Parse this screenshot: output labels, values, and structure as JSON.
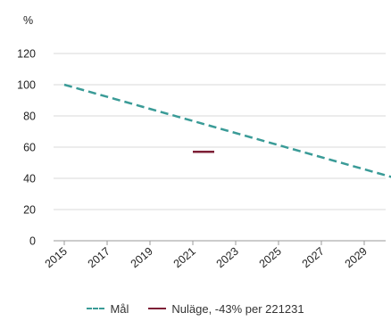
{
  "chart_data": {
    "type": "line",
    "ylabel": "%",
    "ylim": [
      0,
      120
    ],
    "yticks": [
      "0",
      "20",
      "40",
      "60",
      "80",
      "100",
      "120"
    ],
    "xlim": [
      2015,
      2030.5
    ],
    "xticks": [
      "2015",
      "2017",
      "2019",
      "2021",
      "2023",
      "2025",
      "2027",
      "2029"
    ],
    "grid": "horizontal",
    "legend_position": "bottom",
    "series": [
      {
        "name": "Mål",
        "color": "#3a9b97",
        "style": "dashed",
        "x": [
          2015,
          2030.5
        ],
        "y": [
          100,
          40
        ]
      },
      {
        "name": "Nuläge, -43% per 221231",
        "color": "#7d1f36",
        "style": "solid",
        "x": [
          2021,
          2022
        ],
        "y": [
          57,
          57
        ]
      }
    ]
  }
}
